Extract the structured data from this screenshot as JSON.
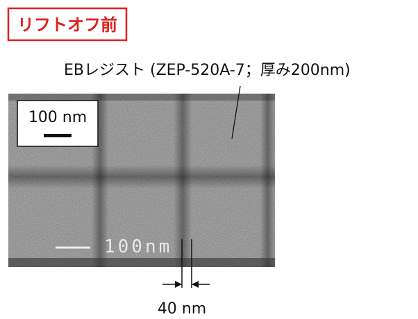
{
  "label": "リフトオフ前",
  "annotation": "EBレジスト (ZEP-520A-7；厚み200nm)",
  "scale_bar": "100 nm",
  "sem_label": "100nm",
  "measurement": "40 nm"
}
